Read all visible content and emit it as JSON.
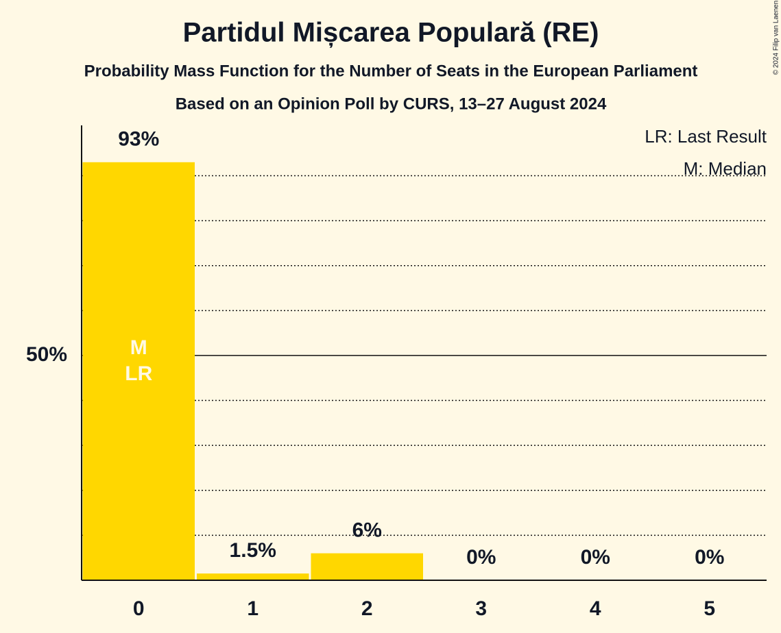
{
  "chart_data": {
    "type": "bar",
    "title": "Partidul Mișcarea Populară (RE)",
    "subtitle": "Probability Mass Function for the Number of Seats in the European Parliament",
    "subtitle2": "Based on an Opinion Poll by CURS, 13–27 August 2024",
    "categories": [
      "0",
      "1",
      "2",
      "3",
      "4",
      "5"
    ],
    "values": [
      93,
      1.5,
      6,
      0,
      0,
      0
    ],
    "value_labels": [
      "93%",
      "1.5%",
      "6%",
      "0%",
      "0%",
      "0%"
    ],
    "color": "#ffd700",
    "ylim": [
      0,
      101.2
    ],
    "yticks": [
      {
        "value": 50,
        "label": "50%"
      }
    ],
    "grid": true,
    "minor_grid": [
      10,
      20,
      30,
      40,
      60,
      70,
      80,
      90
    ],
    "bar_annotations": [
      {
        "index": 0,
        "texts": [
          "M",
          "LR"
        ]
      }
    ],
    "legend": [
      "LR: Last Result",
      "M: Median"
    ],
    "copyright": "© 2024 Filip van Laenen"
  }
}
